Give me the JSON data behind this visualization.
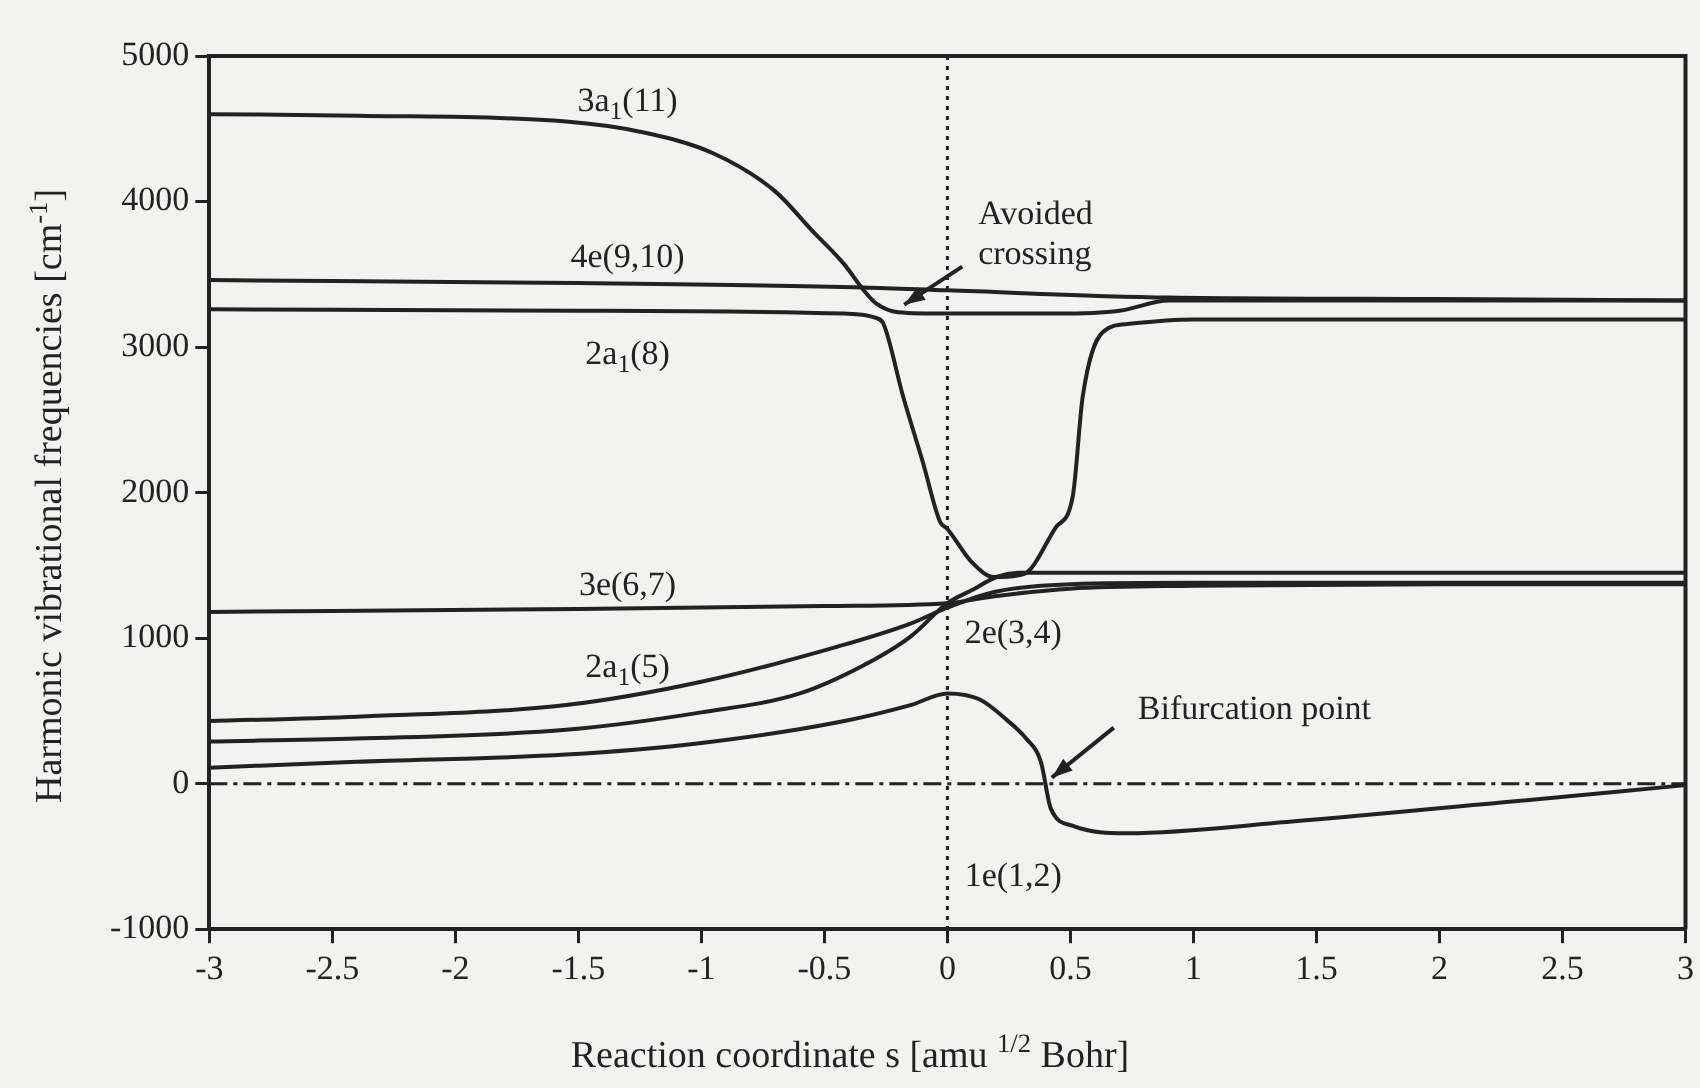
{
  "chart_data": {
    "type": "line",
    "xlabel": "Reaction coordinate s [amu $^{1/2}$ Bohr]",
    "ylabel": "Harmonic vibrational frequencies [cm$^{-1}$]",
    "xlim": [
      -3,
      3
    ],
    "xticks": [
      -3,
      -2.5,
      -2,
      -1.5,
      -1,
      -0.5,
      0,
      0.5,
      1,
      1.5,
      2,
      2.5,
      3
    ],
    "ylim": [
      -1000,
      5000
    ],
    "yticks": [
      -1000,
      0,
      1000,
      2000,
      3000,
      4000,
      5000
    ],
    "grid": false,
    "legend": false,
    "marker": "none",
    "line_style": "solid",
    "series": [
      {
        "name": "3a$_{1}$(11)",
        "color": "#222222",
        "x": [
          -3,
          -2.4,
          -1.55,
          -1.25,
          -0.95,
          -0.7,
          -0.55,
          -0.42,
          -0.34,
          -0.29,
          -0.2,
          0,
          0.45,
          0.7,
          0.9,
          2,
          3
        ],
        "values": [
          4600,
          4590,
          4550,
          4480,
          4330,
          4070,
          3800,
          3570,
          3390,
          3300,
          3240,
          3230,
          3230,
          3250,
          3320,
          3320,
          3320
        ]
      },
      {
        "name": "4e(9,10)",
        "color": "#222222",
        "x": [
          -3,
          -1.5,
          -0.34,
          0,
          0.9,
          2,
          3
        ],
        "values": [
          3460,
          3440,
          3410,
          3390,
          3340,
          3330,
          3320
        ]
      },
      {
        "name": "2a$_{1}$(8)",
        "color": "#222222",
        "x": [
          -3,
          -1.5,
          -0.42,
          -0.29,
          -0.26,
          -0.18,
          -0.1,
          -0.03,
          0,
          0.1,
          0.19,
          0.31,
          0.44,
          0.51,
          0.55,
          0.63,
          0.74,
          1,
          2,
          3
        ],
        "values": [
          3260,
          3250,
          3230,
          3200,
          3160,
          2660,
          2210,
          1800,
          1750,
          1520,
          1420,
          1440,
          1760,
          1980,
          2660,
          3100,
          3160,
          3190,
          3190,
          3190
        ]
      },
      {
        "name": "3e(6,7)",
        "color": "#222222",
        "x": [
          -3,
          -1.5,
          -0.5,
          0,
          0.2,
          0.5,
          1,
          2,
          3
        ],
        "values": [
          1180,
          1200,
          1220,
          1240,
          1290,
          1340,
          1360,
          1370,
          1370
        ]
      },
      {
        "name": "2a$_{1}$(5)",
        "color": "#222222",
        "x": [
          -3,
          -2.4,
          -1.55,
          -1,
          -0.45,
          -0.15,
          0,
          0.2,
          0.5,
          1,
          2,
          3
        ],
        "values": [
          430,
          460,
          540,
          700,
          940,
          1100,
          1210,
          1320,
          1370,
          1380,
          1380,
          1380
        ]
      },
      {
        "name": "2e(3,4)",
        "color": "#222222",
        "x": [
          -3,
          -2.4,
          -1.55,
          -1,
          -0.6,
          -0.3,
          -0.15,
          0,
          0.1,
          0.2,
          0.3,
          1,
          2,
          3
        ],
        "values": [
          290,
          310,
          370,
          490,
          620,
          850,
          1010,
          1240,
          1330,
          1420,
          1450,
          1450,
          1450,
          1450
        ]
      },
      {
        "name": "1e(1,2)",
        "color": "#222222",
        "x": [
          -3,
          -2.4,
          -1.55,
          -1,
          -0.45,
          -0.15,
          0,
          0.13,
          0.24,
          0.32,
          0.38,
          0.42,
          0.51,
          0.73,
          1.4,
          2.25,
          3
        ],
        "values": [
          110,
          150,
          200,
          280,
          420,
          540,
          620,
          580,
          440,
          310,
          150,
          -170,
          -290,
          -340,
          -260,
          -130,
          -10
        ]
      }
    ],
    "ref_lines": [
      {
        "axis": "x",
        "value": 0,
        "line_style": "dotted",
        "color": "#222222"
      },
      {
        "axis": "y",
        "value": 0,
        "line_style": "dashed",
        "color": "#222222"
      }
    ],
    "annotations": [
      {
        "text": "Avoided crossing",
        "x": -0.2,
        "y": 3250
      },
      {
        "text": "Bifurcation point",
        "x": 0.4,
        "y": 0
      }
    ]
  }
}
